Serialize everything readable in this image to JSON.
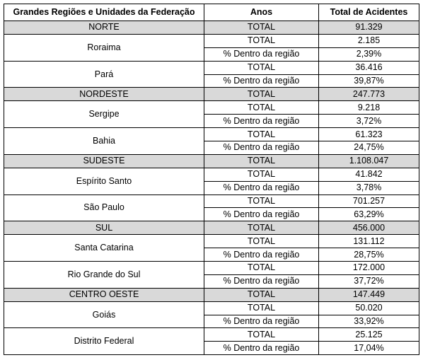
{
  "table": {
    "header": [
      "Grandes Regiões e Unidades da Federação",
      "Anos",
      "Total de Acidentes"
    ],
    "regions": [
      {
        "name": "NORTE",
        "label": "TOTAL",
        "value": "91.329",
        "states": [
          {
            "name": "Roraima",
            "rows": [
              {
                "label": "TOTAL",
                "value": "2.185"
              },
              {
                "label": "% Dentro da região",
                "value": "2,39%"
              }
            ]
          },
          {
            "name": "Pará",
            "rows": [
              {
                "label": "TOTAL",
                "value": "36.416"
              },
              {
                "label": "% Dentro da região",
                "value": "39,87%"
              }
            ]
          }
        ]
      },
      {
        "name": "NORDESTE",
        "label": "TOTAL",
        "value": "247.773",
        "states": [
          {
            "name": "Sergipe",
            "rows": [
              {
                "label": "TOTAL",
                "value": "9.218"
              },
              {
                "label": "% Dentro da região",
                "value": "3,72%"
              }
            ]
          },
          {
            "name": "Bahia",
            "rows": [
              {
                "label": "TOTAL",
                "value": "61.323"
              },
              {
                "label": "% Dentro da região",
                "value": "24,75%"
              }
            ]
          }
        ]
      },
      {
        "name": "SUDESTE",
        "label": "TOTAL",
        "value": "1.108.047",
        "states": [
          {
            "name": "Espírito Santo",
            "rows": [
              {
                "label": "TOTAL",
                "value": "41.842"
              },
              {
                "label": "% Dentro da região",
                "value": "3,78%"
              }
            ]
          },
          {
            "name": "São Paulo",
            "rows": [
              {
                "label": "TOTAL",
                "value": "701.257"
              },
              {
                "label": "% Dentro da região",
                "value": "63,29%"
              }
            ]
          }
        ]
      },
      {
        "name": "SUL",
        "label": "TOTAL",
        "value": "456.000",
        "states": [
          {
            "name": "Santa Catarina",
            "rows": [
              {
                "label": "TOTAL",
                "value": "131.112"
              },
              {
                "label": "% Dentro da região",
                "value": "28,75%"
              }
            ]
          },
          {
            "name": "Rio Grande do Sul",
            "rows": [
              {
                "label": "TOTAL",
                "value": "172.000"
              },
              {
                "label": "% Dentro da região",
                "value": "37,72%"
              }
            ]
          }
        ]
      },
      {
        "name": "CENTRO OESTE",
        "label": "TOTAL",
        "value": "147.449",
        "states": [
          {
            "name": "Goiás",
            "rows": [
              {
                "label": "TOTAL",
                "value": "50.020"
              },
              {
                "label": "% Dentro da região",
                "value": "33,92%"
              }
            ]
          },
          {
            "name": "Distrito Federal",
            "rows": [
              {
                "label": "TOTAL",
                "value": "25.125"
              },
              {
                "label": "% Dentro da região",
                "value": "17,04%"
              }
            ]
          }
        ]
      }
    ]
  }
}
